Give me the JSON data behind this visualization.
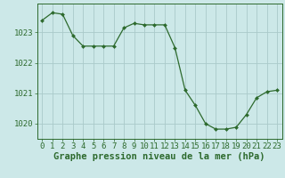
{
  "hours": [
    0,
    1,
    2,
    3,
    4,
    5,
    6,
    7,
    8,
    9,
    10,
    11,
    12,
    13,
    14,
    15,
    16,
    17,
    18,
    19,
    20,
    21,
    22,
    23
  ],
  "pressure": [
    1023.4,
    1023.65,
    1023.6,
    1022.9,
    1022.55,
    1022.55,
    1022.55,
    1022.55,
    1023.15,
    1023.3,
    1023.25,
    1023.25,
    1023.25,
    1022.5,
    1021.1,
    1020.6,
    1020.0,
    1019.82,
    1019.82,
    1019.88,
    1020.3,
    1020.85,
    1021.05,
    1021.1
  ],
  "line_color": "#2d6a2d",
  "marker": "D",
  "marker_size": 2.0,
  "line_width": 0.9,
  "bg_color": "#cce8e8",
  "grid_color": "#aacaca",
  "ylabel_ticks": [
    1020,
    1021,
    1022,
    1023
  ],
  "xlabel_label": "Graphe pression niveau de la mer (hPa)",
  "xlabel_fontsize": 7.5,
  "tick_fontsize": 6.5,
  "xlim": [
    -0.5,
    23.5
  ],
  "ylim": [
    1019.5,
    1023.95
  ]
}
